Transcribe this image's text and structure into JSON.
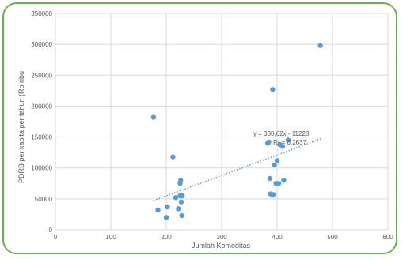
{
  "chart_data": {
    "type": "scatter",
    "xlabel": "Jumlah Komoditas",
    "ylabel": "PDRB per kapita per tahun (Rp ribu",
    "xlim": [
      0,
      600
    ],
    "ylim": [
      0,
      350000
    ],
    "x_ticks": [
      0,
      100,
      200,
      300,
      400,
      500,
      600
    ],
    "y_ticks": [
      0,
      50000,
      100000,
      150000,
      200000,
      250000,
      300000,
      350000
    ],
    "x_tick_labels": [
      "0",
      "100",
      "200",
      "300",
      "400",
      "500",
      "600"
    ],
    "y_tick_labels": [
      "0",
      "50000",
      "100000",
      "150000",
      "200000",
      "250000",
      "300000",
      "350000"
    ],
    "grid": true,
    "legend": "none",
    "point_color": "#5b9bd5",
    "trendline": {
      "style": "dotted",
      "color": "#5b9bd5",
      "slope": 330.62,
      "intercept": -11228,
      "x_range": [
        177,
        480
      ]
    },
    "annotations": {
      "equation": "y = 330,62x - 11228",
      "r_squared": "R² = 0,2637"
    },
    "points": [
      {
        "x": 177,
        "y": 182000
      },
      {
        "x": 185,
        "y": 32000
      },
      {
        "x": 200,
        "y": 20000
      },
      {
        "x": 202,
        "y": 37000
      },
      {
        "x": 212,
        "y": 118000
      },
      {
        "x": 217,
        "y": 52000
      },
      {
        "x": 222,
        "y": 34000
      },
      {
        "x": 225,
        "y": 55000
      },
      {
        "x": 225,
        "y": 75000
      },
      {
        "x": 226,
        "y": 80000
      },
      {
        "x": 227,
        "y": 45000
      },
      {
        "x": 228,
        "y": 23000
      },
      {
        "x": 229,
        "y": 55000
      },
      {
        "x": 383,
        "y": 140000
      },
      {
        "x": 385,
        "y": 142000
      },
      {
        "x": 387,
        "y": 83000
      },
      {
        "x": 388,
        "y": 58000
      },
      {
        "x": 392,
        "y": 56000
      },
      {
        "x": 393,
        "y": 57000
      },
      {
        "x": 392,
        "y": 227000
      },
      {
        "x": 395,
        "y": 105000
      },
      {
        "x": 398,
        "y": 75000
      },
      {
        "x": 400,
        "y": 112000
      },
      {
        "x": 403,
        "y": 75000
      },
      {
        "x": 405,
        "y": 138000
      },
      {
        "x": 410,
        "y": 135000
      },
      {
        "x": 412,
        "y": 80000
      },
      {
        "x": 420,
        "y": 145000
      },
      {
        "x": 478,
        "y": 298000
      }
    ]
  }
}
